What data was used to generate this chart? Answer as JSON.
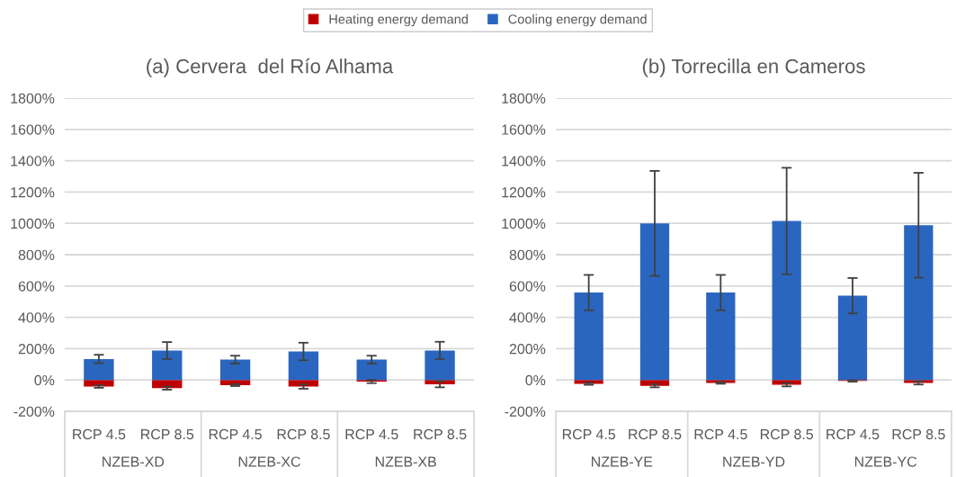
{
  "chart_data": [
    {
      "type": "bar",
      "title": "(a) Cervera  del Río Alhama",
      "stacked": true,
      "grid": "y",
      "legend": "top",
      "categories": [
        "RCP 4.5",
        "RCP 8.5",
        "RCP 4.5",
        "RCP 8.5",
        "RCP 4.5",
        "RCP 8.5"
      ],
      "annotations": [
        "NZEB-XD",
        "NZEB-XC",
        "NZEB-XB"
      ],
      "ylim": [
        -200,
        1800
      ],
      "yticks": [
        {
          "value": -200,
          "label": "-200%"
        },
        {
          "value": 0,
          "label": "0%"
        },
        {
          "value": 200,
          "label": "200%"
        },
        {
          "value": 400,
          "label": "400%"
        },
        {
          "value": 600,
          "label": "600%"
        },
        {
          "value": 800,
          "label": "800%"
        },
        {
          "value": 1000,
          "label": "1000%"
        },
        {
          "value": 1200,
          "label": "1200%"
        },
        {
          "value": 1400,
          "label": "1400%"
        },
        {
          "value": 1600,
          "label": "1600%"
        },
        {
          "value": 1800,
          "label": "1800%"
        }
      ],
      "series": [
        {
          "name": "Heating energy demand",
          "color": "#c00000",
          "values": [
            -42,
            -52,
            -33,
            -42,
            -10,
            -27
          ],
          "errors": [
            8,
            10,
            6,
            14,
            10,
            20
          ]
        },
        {
          "name": "Cooling energy demand",
          "color": "#2a66bf",
          "values": [
            134,
            188,
            130,
            182,
            130,
            188
          ],
          "errors": [
            27,
            54,
            25,
            56,
            25,
            56
          ]
        }
      ]
    },
    {
      "type": "bar",
      "title": "(b) Torrecilla en Cameros",
      "stacked": true,
      "grid": "y",
      "categories": [
        "RCP 4.5",
        "RCP 8.5",
        "RCP 4.5",
        "RCP 8.5",
        "RCP 4.5",
        "RCP 8.5"
      ],
      "annotations": [
        "NZEB-YE",
        "NZEB-YD",
        "NZEB-YC"
      ],
      "ylim": [
        -200,
        1800
      ],
      "yticks": [
        {
          "value": -200,
          "label": "-200%"
        },
        {
          "value": 0,
          "label": "0%"
        },
        {
          "value": 200,
          "label": "200%"
        },
        {
          "value": 400,
          "label": "400%"
        },
        {
          "value": 600,
          "label": "600%"
        },
        {
          "value": 800,
          "label": "800%"
        },
        {
          "value": 1000,
          "label": "1000%"
        },
        {
          "value": 1200,
          "label": "1200%"
        },
        {
          "value": 1400,
          "label": "1400%"
        },
        {
          "value": 1600,
          "label": "1600%"
        },
        {
          "value": 1800,
          "label": "1800%"
        }
      ],
      "series": [
        {
          "color": "#c00000",
          "values": [
            -25,
            -37,
            -19,
            -31,
            -6,
            -19
          ],
          "errors": [
            6,
            10,
            5,
            10,
            5,
            10
          ]
        },
        {
          "color": "#2a66bf",
          "values": [
            558,
            1000,
            558,
            1015,
            538,
            988
          ],
          "errors": [
            113,
            335,
            113,
            340,
            113,
            335
          ]
        }
      ]
    }
  ]
}
